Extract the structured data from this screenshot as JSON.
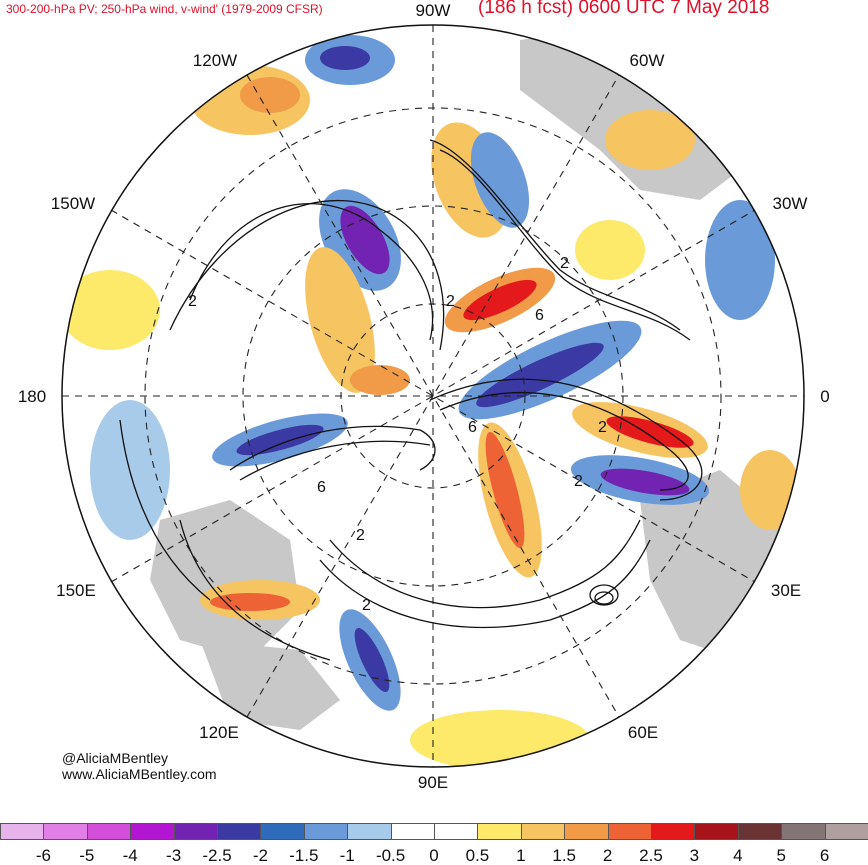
{
  "header": {
    "title_left": "300-200-hPa PV; 250-hPa wind, v-wind' (1979-2009 CFSR)",
    "title_right": "(186 h fcst) 0600 UTC 7 May 2018"
  },
  "longitude_labels": [
    "90W",
    "60W",
    "30W",
    "0",
    "30E",
    "60E",
    "90E",
    "120E",
    "150E",
    "180",
    "150W",
    "120W"
  ],
  "contour_labels": [
    "2",
    "2",
    "6",
    "2",
    "6",
    "2",
    "2",
    "6",
    "2",
    "2"
  ],
  "credit": {
    "twitter": "@AliciaMBentley",
    "website": "www.AliciaMBentley.com"
  },
  "colorbar": {
    "labels": [
      "-6",
      "-5",
      "-4",
      "-3",
      "-2.5",
      "-2",
      "-1.5",
      "-1",
      "-0.5",
      "0",
      "0.5",
      "1",
      "1.5",
      "2",
      "2.5",
      "3",
      "4",
      "5",
      "6"
    ],
    "colors": [
      "#e6b3ea",
      "#e07fe6",
      "#d44fd9",
      "#b216d0",
      "#7323b1",
      "#3b39a3",
      "#2f6bbb",
      "#6a9bd8",
      "#a9cbea",
      "#ffffff",
      "#ffffff",
      "#fde96a",
      "#f6c561",
      "#f19a47",
      "#ed6336",
      "#e3191c",
      "#a7131b",
      "#6b3434",
      "#837575",
      "#b09f9f"
    ]
  },
  "colors": {
    "title": "#e0102a",
    "land": "#c8c8c8",
    "positive_anomaly": "#f6c561",
    "negative_anomaly": "#2f6bbb"
  }
}
